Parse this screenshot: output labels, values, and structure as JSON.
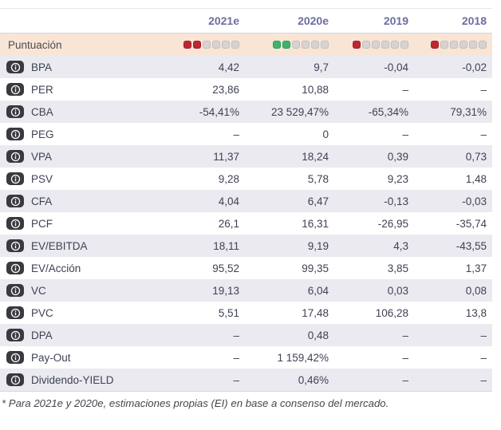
{
  "table": {
    "columns": [
      "2021e",
      "2020e",
      "2019",
      "2018"
    ],
    "score_row": {
      "label": "Puntuación",
      "scores": [
        {
          "filled": 2,
          "total": 6,
          "color": "red"
        },
        {
          "filled": 2,
          "total": 6,
          "color": "green"
        },
        {
          "filled": 1,
          "total": 6,
          "color": "red"
        },
        {
          "filled": 1,
          "total": 6,
          "color": "red"
        }
      ]
    },
    "rows": [
      {
        "label": "BPA",
        "values": [
          "4,42",
          "9,7",
          "-0,04",
          "-0,02"
        ]
      },
      {
        "label": "PER",
        "values": [
          "23,86",
          "10,88",
          "–",
          "–"
        ]
      },
      {
        "label": "CBA",
        "values": [
          "-54,41%",
          "23 529,47%",
          "-65,34%",
          "79,31%"
        ]
      },
      {
        "label": "PEG",
        "values": [
          "–",
          "0",
          "–",
          "–"
        ]
      },
      {
        "label": "VPA",
        "values": [
          "11,37",
          "18,24",
          "0,39",
          "0,73"
        ]
      },
      {
        "label": "PSV",
        "values": [
          "9,28",
          "5,78",
          "9,23",
          "1,48"
        ]
      },
      {
        "label": "CFA",
        "values": [
          "4,04",
          "6,47",
          "-0,13",
          "-0,03"
        ]
      },
      {
        "label": "PCF",
        "values": [
          "26,1",
          "16,31",
          "-26,95",
          "-35,74"
        ]
      },
      {
        "label": "EV/EBITDA",
        "values": [
          "18,11",
          "9,19",
          "4,3",
          "-43,55"
        ]
      },
      {
        "label": "EV/Acción",
        "values": [
          "95,52",
          "99,35",
          "3,85",
          "1,37"
        ]
      },
      {
        "label": "VC",
        "values": [
          "19,13",
          "6,04",
          "0,03",
          "0,08"
        ]
      },
      {
        "label": "PVC",
        "values": [
          "5,51",
          "17,48",
          "106,28",
          "13,8"
        ]
      },
      {
        "label": "DPA",
        "values": [
          "–",
          "0,48",
          "–",
          "–"
        ]
      },
      {
        "label": "Pay-Out",
        "values": [
          "–",
          "1 159,42%",
          "–",
          "–"
        ]
      },
      {
        "label": "Dividendo-YIELD",
        "values": [
          "–",
          "0,46%",
          "–",
          "–"
        ]
      }
    ],
    "footnote": "* Para 2021e y 2020e, estimaciones propias (EI) en base a consenso del mercado."
  },
  "icons": {
    "info": "info-icon"
  },
  "colors": {
    "score_red": "#c0272f",
    "score_green": "#3cb46e",
    "score_empty": "#d8d3d1",
    "score_row_bg": "#f9e5d5",
    "stripe_bg": "#eaeaf0",
    "header_text": "#6b6e9f",
    "body_text": "#3e4254"
  }
}
